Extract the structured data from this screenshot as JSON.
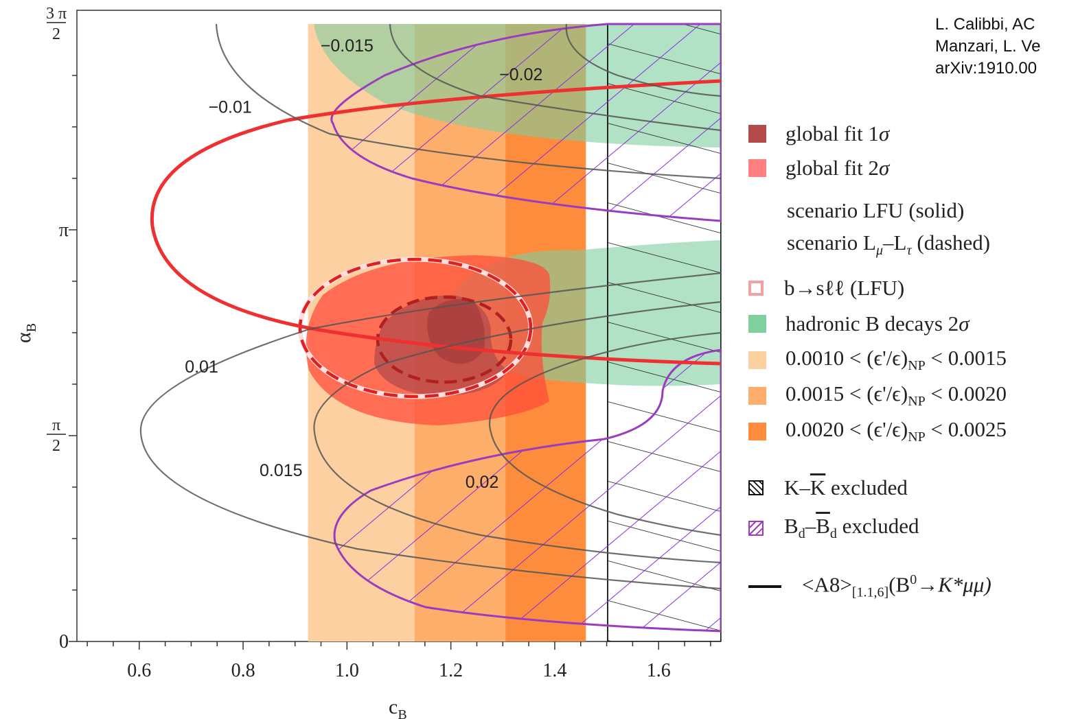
{
  "credit": [
    "L. Calibbi, AC",
    "Manzari, L. Ve",
    "arXiv:1910.00"
  ],
  "chart_data": {
    "type": "contour",
    "xlabel": "c",
    "xlabel_sub": "B",
    "ylabel": "α",
    "ylabel_sub": "B",
    "xlim": [
      0.48,
      1.72
    ],
    "ylim": [
      0,
      4.712
    ],
    "x_ticks": [
      {
        "value": 0.6,
        "label": "0.6"
      },
      {
        "value": 0.8,
        "label": "0.8"
      },
      {
        "value": 1.0,
        "label": "1.0"
      },
      {
        "value": 1.2,
        "label": "1.2"
      },
      {
        "value": 1.4,
        "label": "1.4"
      },
      {
        "value": 1.6,
        "label": "1.6"
      }
    ],
    "y_ticks": [
      {
        "value": 0,
        "label": "0"
      },
      {
        "value": 1.5708,
        "num": "π",
        "den": "2"
      },
      {
        "value": 3.1416,
        "label": "π"
      },
      {
        "value": 4.7124,
        "num": "3 π",
        "den": "2"
      }
    ],
    "epsilon_bands": [
      {
        "x_range": [
          0.925,
          1.13
        ],
        "range": "0.0010 – 0.0015",
        "color": "#fdd0a2"
      },
      {
        "x_range": [
          1.13,
          1.305
        ],
        "range": "0.0015 – 0.0020",
        "color": "#fdae6b"
      },
      {
        "x_range": [
          1.305,
          1.46
        ],
        "range": "0.0020 – 0.0025",
        "color": "#fd8d3c"
      }
    ],
    "kkbar_excluded_x_min": 1.505,
    "contour_labels": [
      {
        "text": "-0.015",
        "x": 1.0,
        "y": 4.55
      },
      {
        "text": "-0.02",
        "x": 1.335,
        "y": 4.33
      },
      {
        "text": "-0.01",
        "x": 0.775,
        "y": 4.08
      },
      {
        "text": "0.01",
        "x": 0.72,
        "y": 2.1
      },
      {
        "text": "0.015",
        "x": 0.873,
        "y": 1.31
      },
      {
        "text": "0.02",
        "x": 1.26,
        "y": 1.22
      }
    ],
    "global_fit_2sigma_center": [
      1.19,
      2.28
    ],
    "global_fit_1sigma_center": [
      1.2,
      2.3
    ],
    "colors": {
      "global_fit_1sigma": "#b34b4b",
      "global_fit_2sigma": "#ff8080",
      "hadronic": "#7fcf9f",
      "bd_excluded": "#9b3bbf",
      "lfu_fit_line": "#ee2020",
      "a8_contours": "#555555"
    }
  },
  "legend": {
    "global_1sigma": {
      "text": "global fit 1",
      "greek": "σ"
    },
    "global_2sigma": {
      "text": "global fit 2",
      "greek": "σ"
    },
    "scenario_lfu": "scenario LFU (solid)",
    "scenario_lmu_pre": "scenario L",
    "scenario_lmu_sub1": "μ",
    "scenario_lmu_mid": "–L",
    "scenario_lmu_sub2": "τ",
    "scenario_lmu_post": " (dashed)",
    "bsll": "b→sℓℓ (LFU)",
    "hadronic": {
      "text": "hadronic B decays 2",
      "greek": "σ"
    },
    "eps1": {
      "lo": "0.0010",
      "hi": "0.0015"
    },
    "eps2": {
      "lo": "0.0015",
      "hi": "0.0020"
    },
    "eps3": {
      "lo": "0.0020",
      "hi": "0.0025"
    },
    "eps_mid": " < (ϵ'/ϵ)",
    "eps_sub": "NP",
    "kk": {
      "k": "K",
      "dash": "–",
      "kbar": "K",
      "rest": " excluded"
    },
    "bd": {
      "b": "B",
      "sub": "d",
      "dash": "–",
      "rest": " excluded"
    },
    "a8": {
      "pre": "<A8>",
      "sub": "[1.1,6]",
      "b": "(B",
      "sup": "0",
      "rest": "→K*μμ)"
    }
  }
}
